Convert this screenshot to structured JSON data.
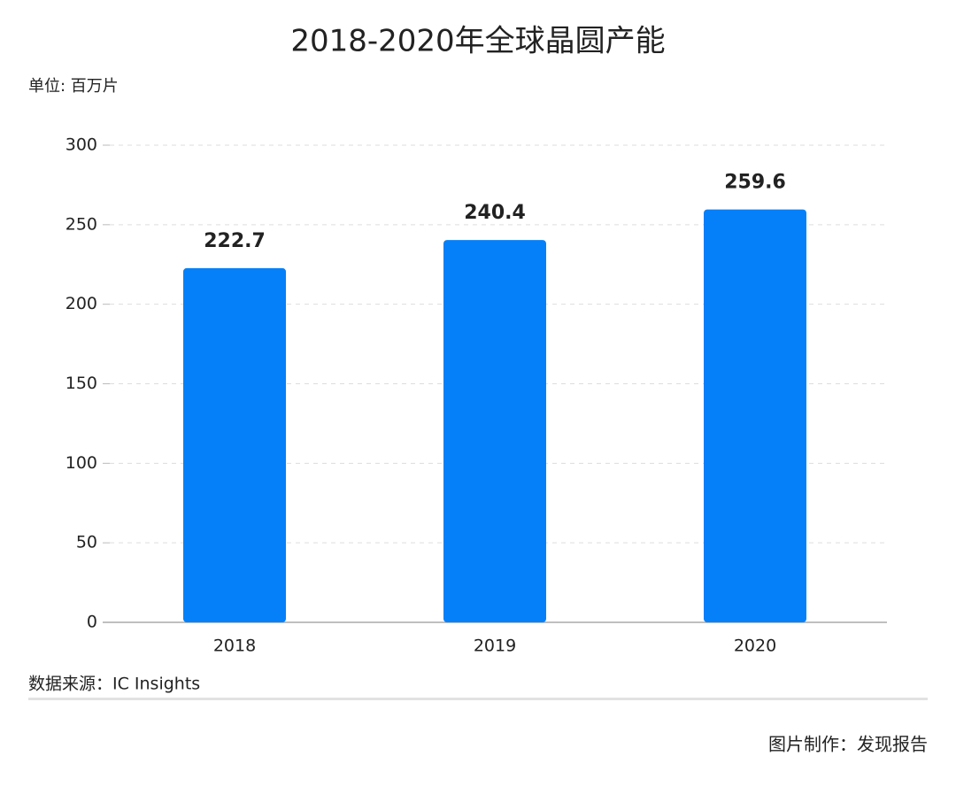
{
  "chart_data": {
    "type": "bar",
    "title": "2018-2020年全球晶圆产能",
    "unit_label": "单位: 百万片",
    "categories": [
      "2018",
      "2019",
      "2020"
    ],
    "values": [
      222.7,
      240.4,
      259.6
    ],
    "color": "#0680f9",
    "ylim": [
      0,
      300
    ],
    "yticks": [
      0,
      50,
      100,
      150,
      200,
      250,
      300
    ],
    "grid": true,
    "source": "数据来源：IC Insights",
    "credit": "图片制作：发现报告"
  }
}
